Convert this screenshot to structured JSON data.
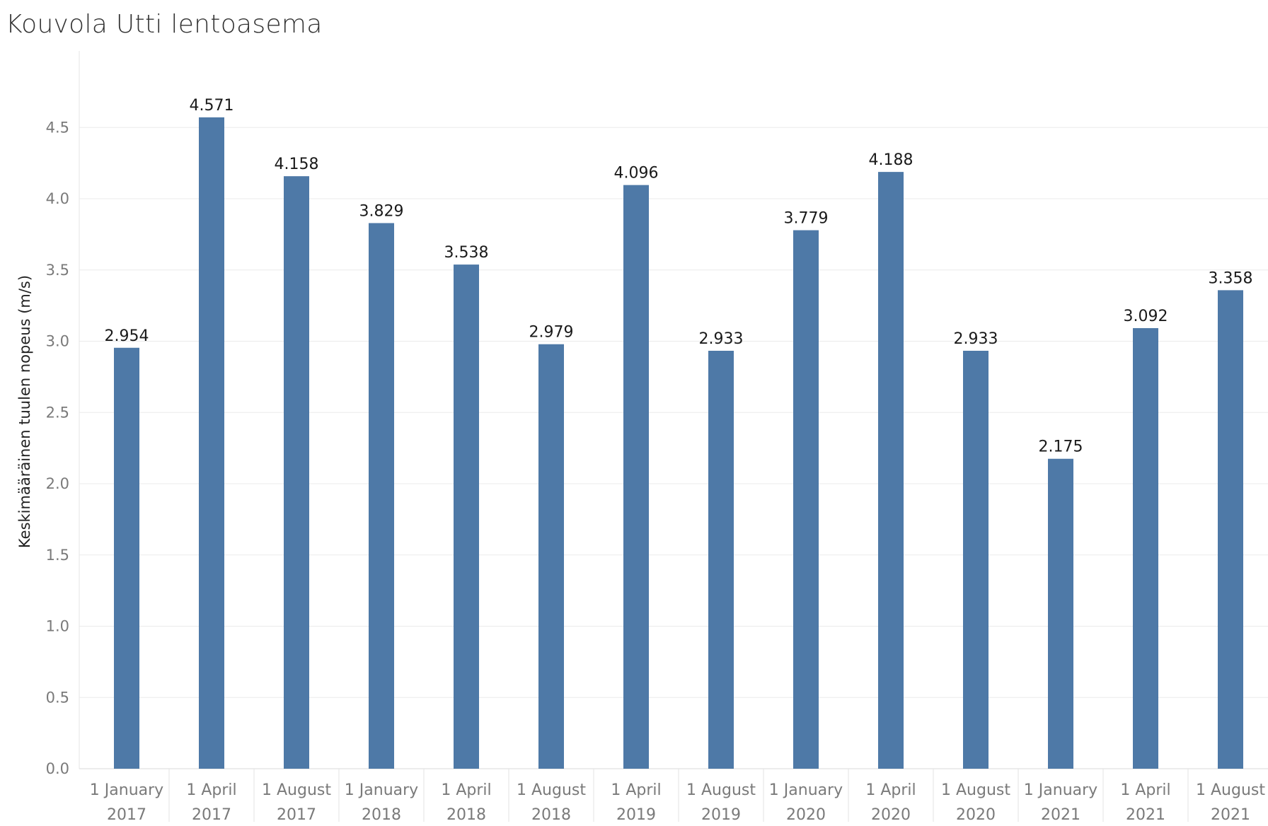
{
  "chart_data": {
    "type": "bar",
    "title": "Kouvola Utti lentoasema",
    "ylabel": "Keskimääräinen tuulen nopeus (m/s)",
    "xlabel": "",
    "ylim": [
      0,
      4.8
    ],
    "yticks": [
      "0.0",
      "0.5",
      "1.0",
      "1.5",
      "2.0",
      "2.5",
      "3.0",
      "3.5",
      "4.0",
      "4.5"
    ],
    "grid": true,
    "bar_color": "#4e79a7",
    "categories": [
      {
        "line1": "1 January",
        "line2": "2017"
      },
      {
        "line1": "1 April",
        "line2": "2017"
      },
      {
        "line1": "1 August",
        "line2": "2017"
      },
      {
        "line1": "1 January",
        "line2": "2018"
      },
      {
        "line1": "1 April",
        "line2": "2018"
      },
      {
        "line1": "1 August",
        "line2": "2018"
      },
      {
        "line1": "1 April",
        "line2": "2019"
      },
      {
        "line1": "1 August",
        "line2": "2019"
      },
      {
        "line1": "1 January",
        "line2": "2020"
      },
      {
        "line1": "1 April",
        "line2": "2020"
      },
      {
        "line1": "1 August",
        "line2": "2020"
      },
      {
        "line1": "1 January",
        "line2": "2021"
      },
      {
        "line1": "1 April",
        "line2": "2021"
      },
      {
        "line1": "1 August",
        "line2": "2021"
      }
    ],
    "values": [
      2.954,
      4.571,
      4.158,
      3.829,
      3.538,
      2.979,
      4.096,
      2.933,
      3.779,
      4.188,
      2.933,
      2.175,
      3.092,
      3.358
    ],
    "value_labels": [
      "2.954",
      "4.571",
      "4.158",
      "3.829",
      "3.538",
      "2.979",
      "4.096",
      "2.933",
      "3.779",
      "4.188",
      "2.933",
      "2.175",
      "3.092",
      "3.358"
    ]
  }
}
